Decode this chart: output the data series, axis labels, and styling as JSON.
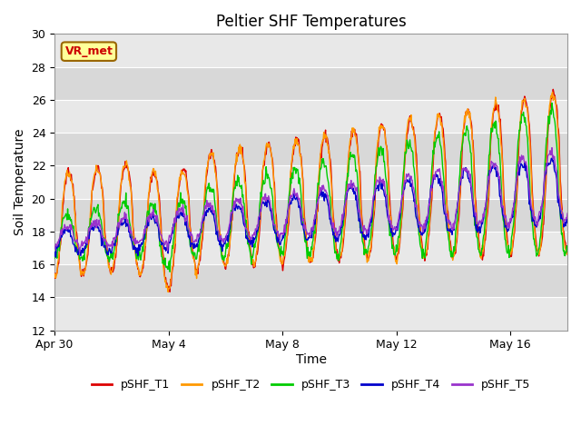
{
  "title": "Peltier SHF Temperatures",
  "xlabel": "Time",
  "ylabel": "Soil Temperature",
  "ylim": [
    12,
    30
  ],
  "yticks": [
    12,
    14,
    16,
    18,
    20,
    22,
    24,
    26,
    28,
    30
  ],
  "xtick_labels": [
    "Apr 30",
    "May 4",
    "May 8",
    "May 12",
    "May 16"
  ],
  "xtick_positions": [
    0,
    4,
    8,
    12,
    16
  ],
  "series_colors": [
    "#dd0000",
    "#ff9900",
    "#00cc00",
    "#0000cc",
    "#9933cc"
  ],
  "series_names": [
    "pSHF_T1",
    "pSHF_T2",
    "pSHF_T3",
    "pSHF_T4",
    "pSHF_T5"
  ],
  "annotation_text": "VR_met",
  "annotation_color": "#cc0000",
  "annotation_bg": "#ffff99",
  "band_colors": [
    "#e8e8e8",
    "#d8d8d8"
  ],
  "n_days": 18,
  "samples_per_day": 48,
  "title_fontsize": 12,
  "axis_label_fontsize": 10,
  "tick_fontsize": 9,
  "legend_fontsize": 9
}
